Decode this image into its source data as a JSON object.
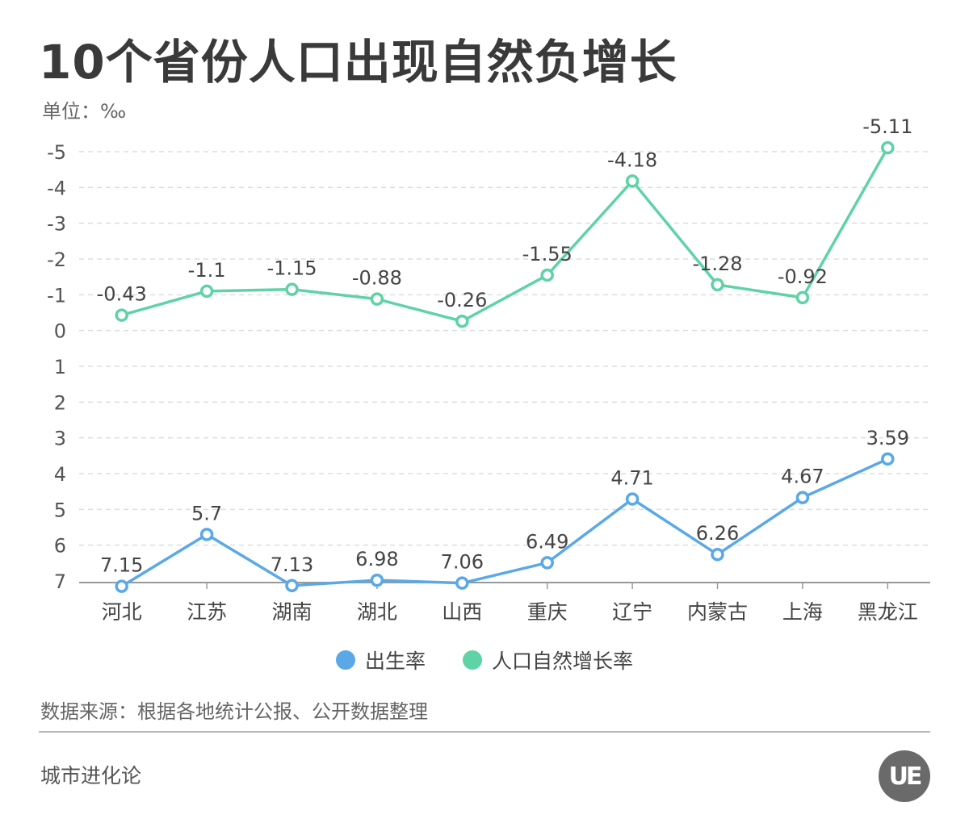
{
  "title": "10个省份人口出现自然负增长",
  "unit_label": "单位：‰",
  "source": "数据来源：根据各地统计公报、公开数据整理",
  "brand": "城市进化论",
  "logo_text": "UE",
  "colors": {
    "birth": "#5aa9e6",
    "natural": "#5fd3a6",
    "grid": "#dddddd",
    "axis": "#999999",
    "text": "#444444"
  },
  "chart_data": {
    "type": "line",
    "categories": [
      "河北",
      "江苏",
      "湖南",
      "湖北",
      "山西",
      "重庆",
      "辽宁",
      "内蒙古",
      "上海",
      "黑龙江"
    ],
    "y_ticks": [
      "-5",
      "-4",
      "-3",
      "-2",
      "-1",
      "0",
      "1",
      "2",
      "3",
      "4",
      "5",
      "6",
      "7"
    ],
    "y_tick_values": [
      -5,
      -4,
      -3,
      -2,
      -1,
      0,
      1,
      2,
      3,
      4,
      5,
      6,
      7
    ],
    "ylim": [
      -5,
      7
    ],
    "y_axis_inverted": true,
    "grid": true,
    "legend_position": "bottom",
    "series": [
      {
        "name": "出生率",
        "color": "#5aa9e6",
        "values": [
          7.15,
          5.7,
          7.13,
          6.98,
          7.06,
          6.49,
          4.71,
          6.26,
          4.67,
          3.59
        ],
        "labels": [
          "7.15",
          "5.7",
          "7.13",
          "6.98",
          "7.06",
          "6.49",
          "4.71",
          "6.26",
          "4.67",
          "3.59"
        ]
      },
      {
        "name": "人口自然增长率",
        "color": "#5fd3a6",
        "values": [
          -0.43,
          -1.1,
          -1.15,
          -0.88,
          -0.26,
          -1.55,
          -4.18,
          -1.28,
          -0.92,
          -5.11
        ],
        "labels": [
          "-0.43",
          "-1.1",
          "-1.15",
          "-0.88",
          "-0.26",
          "-1.55",
          "-4.18",
          "-1.28",
          "-0.92",
          "-5.11"
        ]
      }
    ]
  }
}
